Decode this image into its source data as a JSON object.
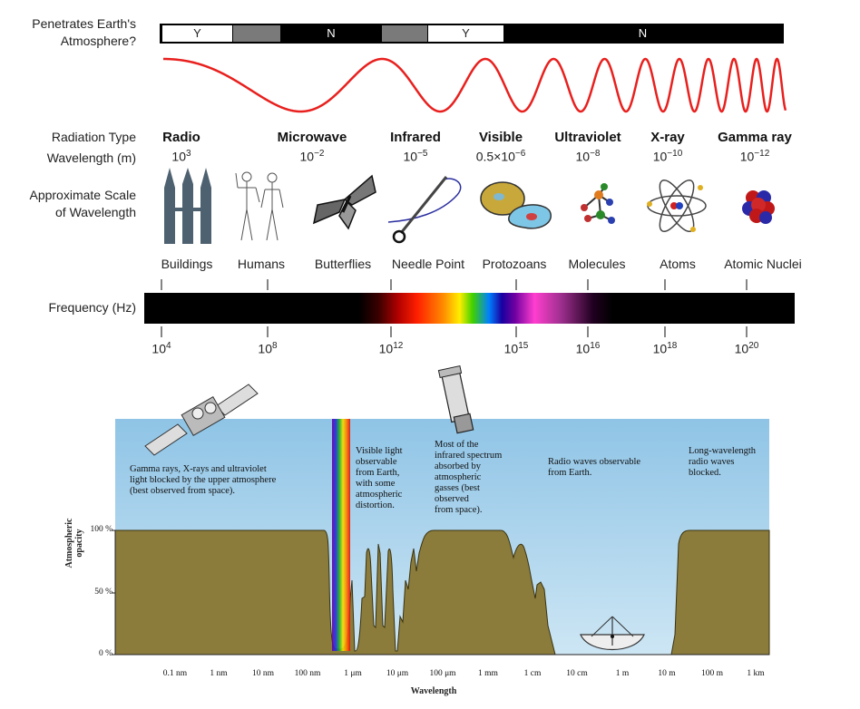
{
  "top": {
    "penetrates_label": "Penetrates Earth's\nAtmosphere?",
    "segments": [
      {
        "label": "Y",
        "style": "white"
      },
      {
        "label": "",
        "style": "gray"
      },
      {
        "label": "N",
        "style": "black"
      },
      {
        "label": "",
        "style": "gray"
      },
      {
        "label": "Y",
        "style": "white"
      },
      {
        "label": "N",
        "style": "black"
      }
    ],
    "radiation_type_label": "Radiation Type",
    "wavelength_label": "Wavelength (m)",
    "scale_label": "Approximate Scale\nof Wavelength",
    "frequency_label": "Frequency (Hz)",
    "types": [
      {
        "name": "Radio",
        "base": "10",
        "exp": "3"
      },
      {
        "name": "Microwave",
        "base": "10",
        "exp": "−2"
      },
      {
        "name": "Infrared",
        "base": "10",
        "exp": "−5"
      },
      {
        "name": "Visible",
        "base": "0.5×10",
        "exp": "−6"
      },
      {
        "name": "Ultraviolet",
        "base": "10",
        "exp": "−8"
      },
      {
        "name": "X-ray",
        "base": "10",
        "exp": "−10"
      },
      {
        "name": "Gamma ray",
        "base": "10",
        "exp": "−12"
      }
    ],
    "scales": [
      "Buildings",
      "Humans",
      "Butterflies",
      "Needle Point",
      "Protozoans",
      "Molecules",
      "Atoms",
      "Atomic Nuclei"
    ],
    "frequencies": [
      {
        "base": "10",
        "exp": "4"
      },
      {
        "base": "10",
        "exp": "8"
      },
      {
        "base": "10",
        "exp": "12"
      },
      {
        "base": "10",
        "exp": "15"
      },
      {
        "base": "10",
        "exp": "16"
      },
      {
        "base": "10",
        "exp": "18"
      },
      {
        "base": "10",
        "exp": "20"
      }
    ]
  },
  "bottom": {
    "y_axis_label": "Atmospheric\nopacity",
    "y_ticks": [
      "100 %",
      "50 %",
      "0 %"
    ],
    "x_axis_label": "Wavelength",
    "x_ticks": [
      "0.1 nm",
      "1 nm",
      "10 nm",
      "100 nm",
      "1 μm",
      "10 μm",
      "100 μm",
      "1 mm",
      "1 cm",
      "10 cm",
      "1 m",
      "10 m",
      "100 m",
      "1 km"
    ],
    "notes": [
      "Gamma rays, X-rays and ultraviolet\nlight blocked by the upper atmosphere\n(best observed from space).",
      "Visible light\nobservable\nfrom Earth,\nwith some\natmospheric\ndistortion.",
      "Most of the\ninfrared spectrum\nabsorbed by\natmospheric\ngasses (best\nobserved\nfrom space).",
      "Radio waves observable\nfrom Earth.",
      "Long-wavelength\nradio waves\nblocked."
    ]
  },
  "colors": {
    "wave": "#e8201e",
    "sky": "#a9d3ec",
    "ground": "#8b7c3c",
    "bar_black": "#000000",
    "segment_gray": "#7a7a7a"
  },
  "icons": [
    "buildings-icon",
    "humans-icon",
    "butterfly-icon",
    "needle-icon",
    "protozoa-icon",
    "molecule-icon",
    "atom-icon",
    "nucleus-icon",
    "satellite-icon",
    "space-telescope-icon",
    "radio-dish-icon"
  ]
}
